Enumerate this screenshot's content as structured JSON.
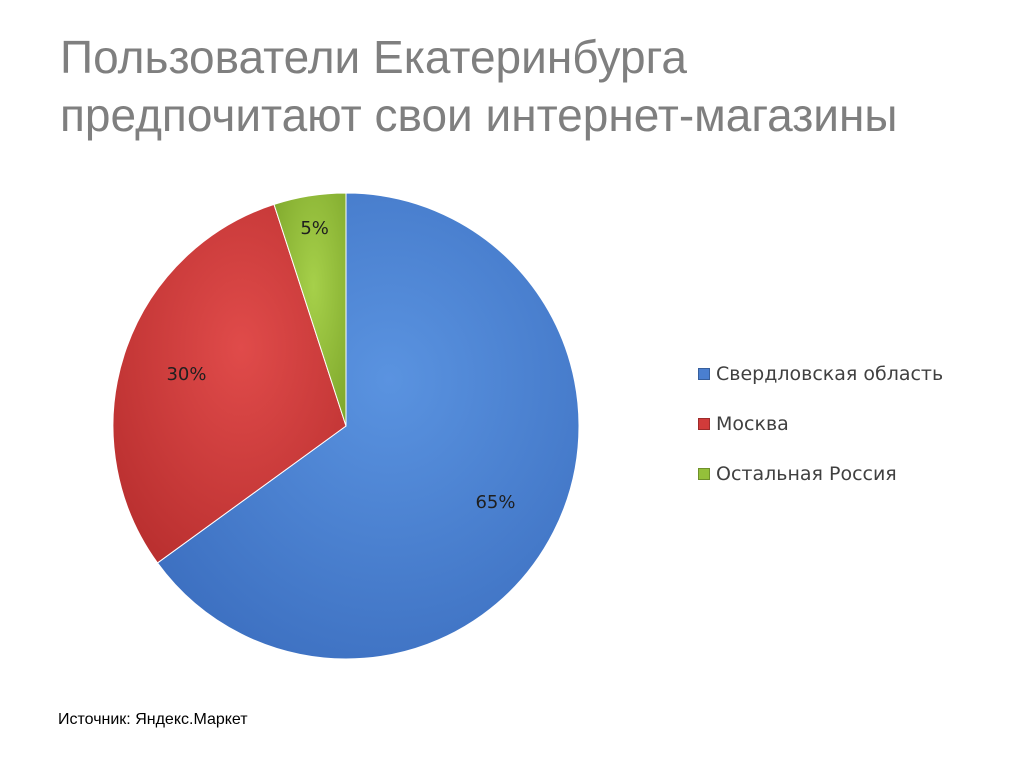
{
  "slide": {
    "title_line1": "Пользователи Екатеринбурга",
    "title_line2": "предпочитают свои интернет-магазины",
    "source": "Источник: Яндекс.Маркет"
  },
  "chart_data": {
    "type": "pie",
    "categories": [
      "Свердловская область",
      "Москва",
      "Остальная Россия"
    ],
    "values": [
      65,
      30,
      5
    ],
    "labels": [
      "65%",
      "30%",
      "5%"
    ],
    "colors": [
      "#4a7fd0",
      "#d13b3a",
      "#94c03a"
    ],
    "legend": "right"
  }
}
